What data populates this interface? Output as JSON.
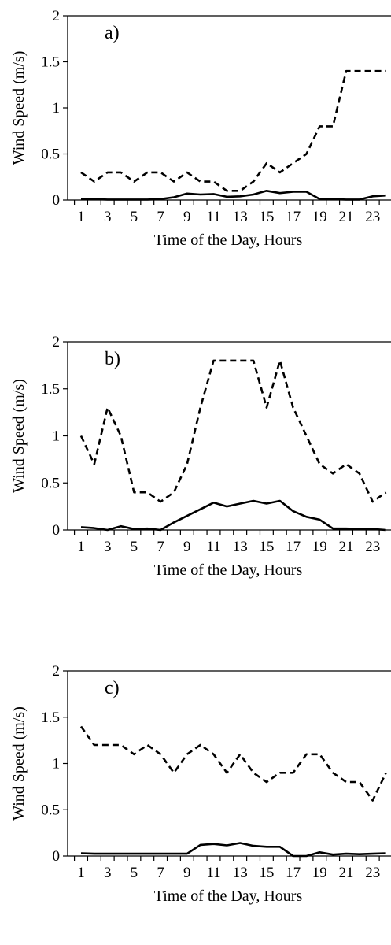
{
  "chart_data": [
    {
      "type": "line",
      "annotation": "a)",
      "xlabel": "Time of the Day, Hours",
      "ylabel": "Wind Speed (m/s)",
      "ylim": [
        0,
        2
      ],
      "yticks": [
        0,
        0.5,
        1,
        1.5,
        2
      ],
      "ytick_labels": [
        "0",
        "0.5",
        "1",
        "1.5",
        "2"
      ],
      "xlim": [
        1,
        24
      ],
      "xtick_labels": [
        "1",
        "3",
        "5",
        "7",
        "9",
        "11",
        "13",
        "15",
        "17",
        "19",
        "21",
        "23"
      ],
      "x": [
        1,
        2,
        3,
        4,
        5,
        6,
        7,
        8,
        9,
        10,
        11,
        12,
        13,
        14,
        15,
        16,
        17,
        18,
        19,
        20,
        21,
        22,
        23,
        24
      ],
      "series": [
        {
          "style": "solid",
          "values": [
            0.01,
            0.01,
            0.005,
            0.005,
            0.005,
            0.005,
            0.01,
            0.03,
            0.07,
            0.06,
            0.065,
            0.035,
            0.04,
            0.06,
            0.1,
            0.075,
            0.09,
            0.09,
            0.01,
            0.01,
            0.005,
            0.005,
            0.04,
            0.05
          ]
        },
        {
          "style": "dashed",
          "values": [
            0.3,
            0.2,
            0.3,
            0.3,
            0.2,
            0.3,
            0.3,
            0.2,
            0.3,
            0.2,
            0.2,
            0.1,
            0.1,
            0.2,
            0.4,
            0.3,
            0.4,
            0.5,
            0.8,
            0.8,
            1.4,
            1.4,
            1.4,
            1.4
          ]
        }
      ]
    },
    {
      "type": "line",
      "annotation": "b)",
      "xlabel": "Time of the Day, Hours",
      "ylabel": "Wind Speed (m/s)",
      "ylim": [
        0,
        2
      ],
      "yticks": [
        0,
        0.5,
        1,
        1.5,
        2
      ],
      "ytick_labels": [
        "0",
        "0.5",
        "1",
        "1.5",
        "2"
      ],
      "xlim": [
        1,
        24
      ],
      "xtick_labels": [
        "1",
        "3",
        "5",
        "7",
        "9",
        "11",
        "13",
        "15",
        "17",
        "19",
        "21",
        "23"
      ],
      "x": [
        1,
        2,
        3,
        4,
        5,
        6,
        7,
        8,
        9,
        10,
        11,
        12,
        13,
        14,
        15,
        16,
        17,
        18,
        19,
        20,
        21,
        22,
        23,
        24
      ],
      "series": [
        {
          "style": "solid",
          "values": [
            0.03,
            0.02,
            0,
            0.04,
            0.01,
            0.015,
            0,
            0.08,
            0.15,
            0.22,
            0.29,
            0.25,
            0.28,
            0.31,
            0.28,
            0.31,
            0.2,
            0.14,
            0.11,
            0.015,
            0.015,
            0.01,
            0.01,
            0
          ]
        },
        {
          "style": "dashed",
          "values": [
            1.0,
            0.7,
            1.3,
            1.0,
            0.4,
            0.4,
            0.3,
            0.4,
            0.7,
            1.3,
            1.8,
            1.8,
            1.8,
            1.8,
            1.3,
            1.8,
            1.3,
            1.0,
            0.7,
            0.6,
            0.7,
            0.6,
            0.3,
            0.4
          ]
        }
      ]
    },
    {
      "type": "line",
      "annotation": "c)",
      "xlabel": "Time of the Day, Hours",
      "ylabel": "Wind Speed (m/s)",
      "ylim": [
        0,
        2
      ],
      "yticks": [
        0,
        0.5,
        1,
        1.5,
        2
      ],
      "ytick_labels": [
        "0",
        "0.5",
        "1",
        "1.5",
        "2"
      ],
      "xlim": [
        1,
        24
      ],
      "xtick_labels": [
        "1",
        "3",
        "5",
        "7",
        "9",
        "11",
        "13",
        "15",
        "17",
        "19",
        "21",
        "23"
      ],
      "x": [
        1,
        2,
        3,
        4,
        5,
        6,
        7,
        8,
        9,
        10,
        11,
        12,
        13,
        14,
        15,
        16,
        17,
        18,
        19,
        20,
        21,
        22,
        23,
        24
      ],
      "series": [
        {
          "style": "solid",
          "values": [
            0.03,
            0.025,
            0.025,
            0.025,
            0.025,
            0.025,
            0.025,
            0.025,
            0.025,
            0.12,
            0.13,
            0.115,
            0.14,
            0.11,
            0.1,
            0.1,
            0,
            0,
            0.04,
            0.015,
            0.025,
            0.02,
            0.025,
            0.03
          ]
        },
        {
          "style": "dashed",
          "values": [
            1.4,
            1.2,
            1.2,
            1.2,
            1.1,
            1.2,
            1.1,
            0.9,
            1.1,
            1.2,
            1.1,
            0.9,
            1.1,
            0.9,
            0.8,
            0.9,
            0.9,
            1.1,
            1.1,
            0.9,
            0.8,
            0.8,
            0.6,
            0.9
          ]
        }
      ]
    }
  ]
}
